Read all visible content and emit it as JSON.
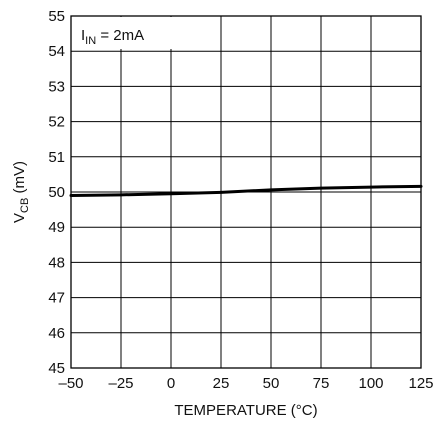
{
  "chart_data": {
    "type": "line",
    "title": "",
    "xlabel": "TEMPERATURE (°C)",
    "ylabel": {
      "main": "V",
      "sub": "CB",
      "unit": " (mV)"
    },
    "annotation": {
      "main": "I",
      "sub": "IN",
      "rest": " = 2mA"
    },
    "xlim": [
      -50,
      125
    ],
    "ylim": [
      45,
      55
    ],
    "x_ticks": [
      -50,
      -25,
      0,
      25,
      50,
      75,
      100,
      125
    ],
    "x_tick_labels": [
      "–50",
      "–25",
      "0",
      "25",
      "50",
      "75",
      "100",
      "125"
    ],
    "y_ticks": [
      45,
      46,
      47,
      48,
      49,
      50,
      51,
      52,
      53,
      54,
      55
    ],
    "y_tick_labels": [
      "45",
      "46",
      "47",
      "48",
      "49",
      "50",
      "51",
      "52",
      "53",
      "54",
      "55"
    ],
    "grid": true,
    "series": [
      {
        "x": [
          -50,
          -25,
          0,
          25,
          50,
          75,
          100,
          125
        ],
        "y": [
          49.9,
          49.92,
          49.95,
          49.99,
          50.06,
          50.11,
          50.14,
          50.16
        ],
        "color": "#000000"
      }
    ]
  }
}
